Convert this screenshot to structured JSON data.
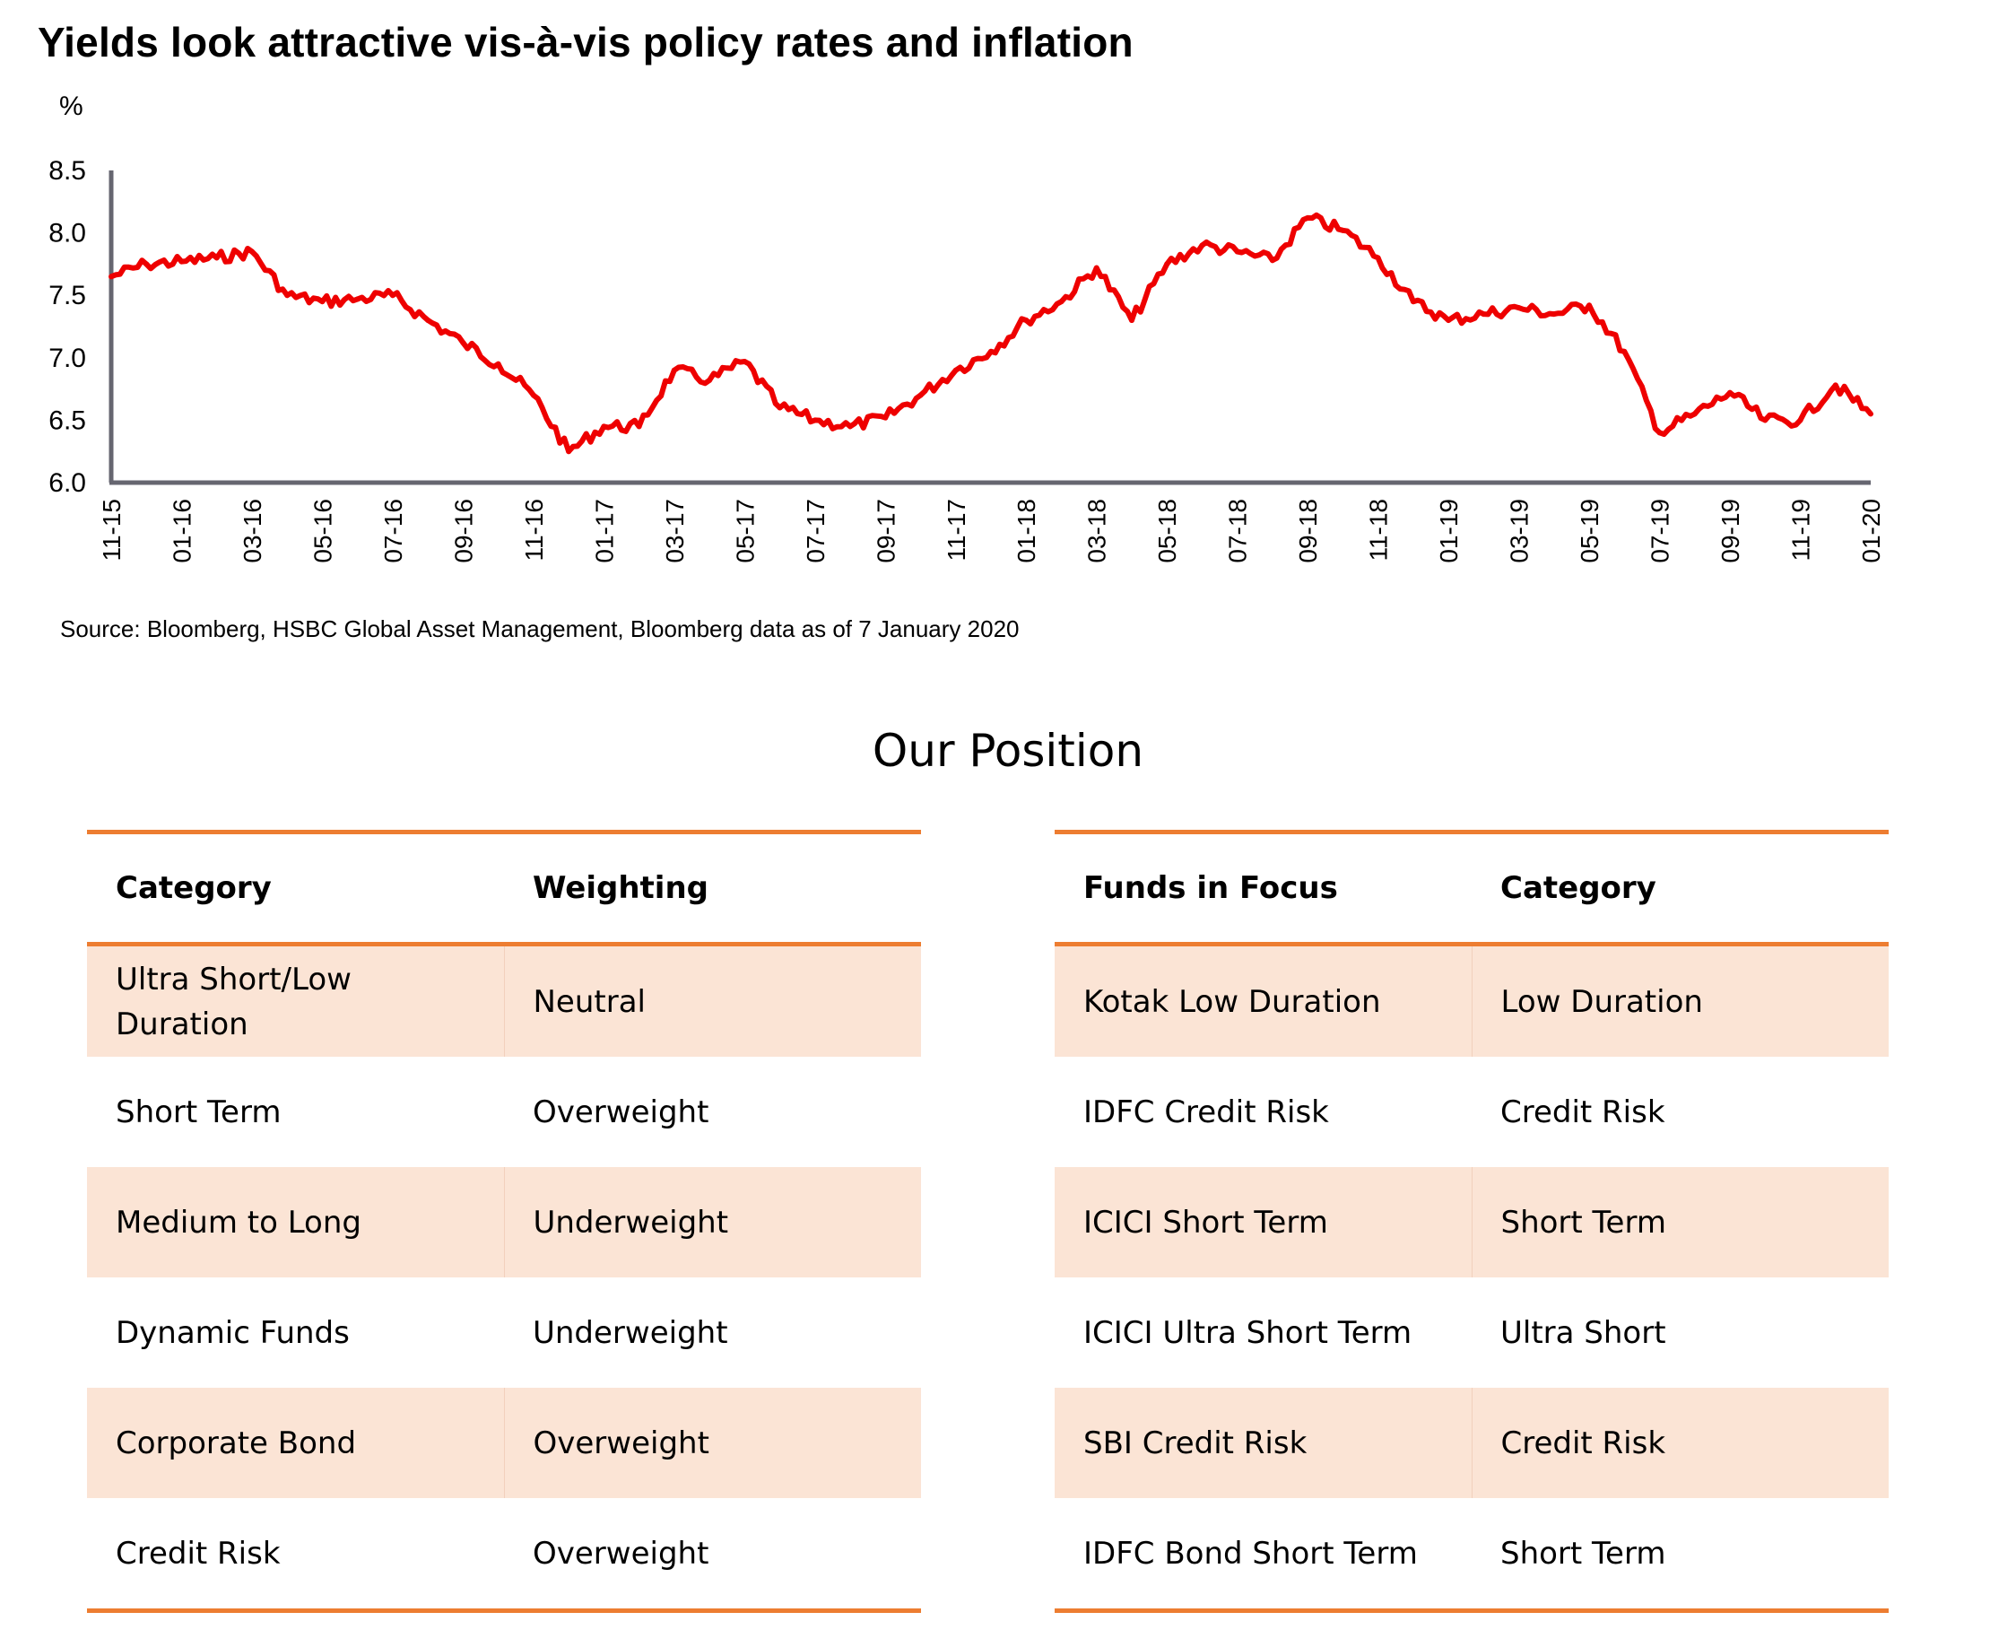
{
  "title": "Yields look attractive vis-à-vis policy rates and inflation",
  "unit_label": "%",
  "source": "Source: Bloomberg, HSBC Global Asset Management, Bloomberg data as of 7 January 2020",
  "section_title": "Our Position",
  "colors": {
    "line": "#EE0000",
    "axis": "#666670",
    "accent": "#ED7D31",
    "row_shade": "#FBE4D5"
  },
  "chart_data": {
    "type": "line",
    "title": "Yields look attractive vis-à-vis policy rates and inflation",
    "xlabel": "",
    "ylabel": "%",
    "ylim": [
      6.0,
      8.5
    ],
    "yticks": [
      "8.5",
      "8.0",
      "7.5",
      "7.0",
      "6.5",
      "6.0"
    ],
    "ytick_values": [
      8.5,
      8.0,
      7.5,
      7.0,
      6.5,
      6.0
    ],
    "xticks": [
      "11-15",
      "01-16",
      "03-16",
      "05-16",
      "07-16",
      "09-16",
      "11-16",
      "01-17",
      "03-17",
      "05-17",
      "07-17",
      "09-17",
      "11-17",
      "01-18",
      "03-18",
      "05-18",
      "07-18",
      "09-18",
      "11-18",
      "01-19",
      "03-19",
      "05-19",
      "07-19",
      "09-19",
      "11-19",
      "01-20"
    ],
    "grid": false,
    "legend": "none",
    "series": [
      {
        "name": "Yield",
        "x": [
          "11-15",
          "12-15",
          "01-16",
          "02-16",
          "03-16",
          "04-16",
          "05-16",
          "06-16",
          "07-16",
          "08-16",
          "09-16",
          "10-16",
          "11-16",
          "12-16",
          "01-17",
          "02-17",
          "03-17",
          "04-17",
          "05-17",
          "06-17",
          "07-17",
          "08-17",
          "09-17",
          "10-17",
          "11-17",
          "12-17",
          "01-18",
          "02-18",
          "03-18",
          "04-18",
          "05-18",
          "06-18",
          "07-18",
          "08-18",
          "09-18",
          "10-18",
          "11-18",
          "12-18",
          "01-19",
          "02-19",
          "03-19",
          "04-19",
          "05-19",
          "06-19",
          "07-19",
          "08-19",
          "09-19",
          "10-19",
          "11-19",
          "12-19",
          "01-20"
        ],
        "values": [
          7.65,
          7.75,
          7.77,
          7.8,
          7.85,
          7.5,
          7.45,
          7.47,
          7.5,
          7.3,
          7.12,
          6.95,
          6.7,
          6.25,
          6.45,
          6.45,
          6.9,
          6.82,
          6.97,
          6.6,
          6.5,
          6.45,
          6.52,
          6.7,
          6.9,
          7.05,
          7.3,
          7.45,
          7.72,
          7.3,
          7.75,
          7.9,
          7.85,
          7.78,
          8.12,
          8.02,
          7.8,
          7.45,
          7.3,
          7.35,
          7.4,
          7.35,
          7.42,
          7.05,
          6.4,
          6.55,
          6.72,
          6.5,
          6.5,
          6.78,
          6.55
        ]
      }
    ]
  },
  "tables": {
    "positioning": {
      "headers": [
        "Category",
        "Weighting"
      ],
      "rows": [
        [
          "Ultra Short/Low Duration",
          "Neutral"
        ],
        [
          "Short Term",
          "Overweight"
        ],
        [
          "Medium to Long",
          "Underweight"
        ],
        [
          "Dynamic Funds",
          "Underweight"
        ],
        [
          "Corporate Bond",
          "Overweight"
        ],
        [
          "Credit Risk",
          "Overweight"
        ]
      ]
    },
    "funds": {
      "headers": [
        "Funds in Focus",
        "Category"
      ],
      "rows": [
        [
          "Kotak Low Duration",
          "Low Duration"
        ],
        [
          "IDFC Credit Risk",
          "Credit Risk"
        ],
        [
          "ICICI Short Term",
          "Short Term"
        ],
        [
          "ICICI Ultra Short Term",
          "Ultra Short"
        ],
        [
          "SBI Credit Risk",
          "Credit Risk"
        ],
        [
          "IDFC Bond Short Term",
          "Short Term"
        ]
      ]
    }
  }
}
